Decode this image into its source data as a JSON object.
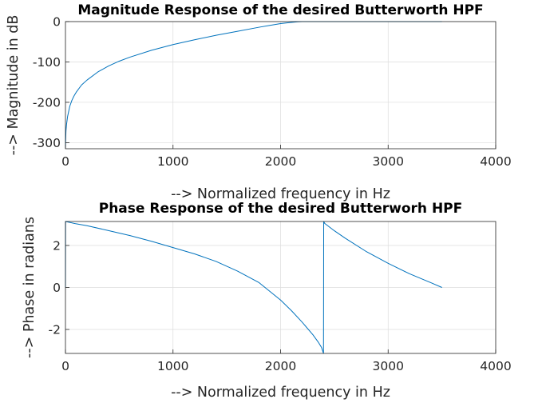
{
  "chart_data": [
    {
      "type": "line",
      "title": "Magnitude Response of the desired Butterworth HPF",
      "xlabel": "--> Normalized frequency in Hz",
      "ylabel": "--> Magnitude in dB",
      "xlim": [
        0,
        4000
      ],
      "ylim": [
        -315,
        0
      ],
      "xticks": [
        0,
        1000,
        2000,
        3000,
        4000
      ],
      "yticks": [
        0,
        -100,
        -200,
        -300
      ],
      "grid": true,
      "color": "#0072BD",
      "x": [
        0,
        1,
        5,
        10,
        20,
        40,
        60,
        80,
        100,
        150,
        200,
        300,
        400,
        500,
        600,
        800,
        1000,
        1200,
        1400,
        1600,
        1800,
        1900,
        2000,
        2100,
        2160,
        2200,
        2250,
        2300,
        2400,
        2600,
        2800,
        3000,
        3200,
        3400,
        3500
      ],
      "y": [
        -315,
        -300,
        -270,
        -255,
        -235,
        -210,
        -195,
        -184,
        -175,
        -157,
        -145,
        -125,
        -110,
        -98,
        -88,
        -71,
        -57,
        -45,
        -34,
        -24,
        -14,
        -9.5,
        -5,
        -2,
        -0.5,
        -0.1,
        0,
        0,
        0,
        0,
        0,
        0,
        0,
        0,
        0
      ]
    },
    {
      "type": "line",
      "title": "Phase Response of the desired Butterworh HPF",
      "xlabel": "--> Normalized frequency in Hz",
      "ylabel": "--> Phase in radians",
      "xlim": [
        0,
        4000
      ],
      "ylim": [
        -3.1416,
        3.1416
      ],
      "xticks": [
        0,
        1000,
        2000,
        3000,
        4000
      ],
      "yticks": [
        2,
        0,
        -2
      ],
      "grid": true,
      "color": "#0072BD",
      "x": [
        0,
        1,
        100,
        200,
        400,
        600,
        800,
        1000,
        1200,
        1400,
        1600,
        1800,
        2000,
        2100,
        2200,
        2300,
        2350,
        2380,
        2399,
        2400,
        2401,
        2410,
        2500,
        2600,
        2800,
        3000,
        3200,
        3400,
        3500
      ],
      "y": [
        0,
        3.14,
        3.03,
        2.94,
        2.71,
        2.47,
        2.2,
        1.9,
        1.6,
        1.24,
        0.78,
        0.23,
        -0.6,
        -1.1,
        -1.65,
        -2.25,
        -2.6,
        -2.85,
        -3.14,
        -0.5,
        3.14,
        3.05,
        2.7,
        2.35,
        1.7,
        1.15,
        0.65,
        0.22,
        0
      ]
    }
  ]
}
